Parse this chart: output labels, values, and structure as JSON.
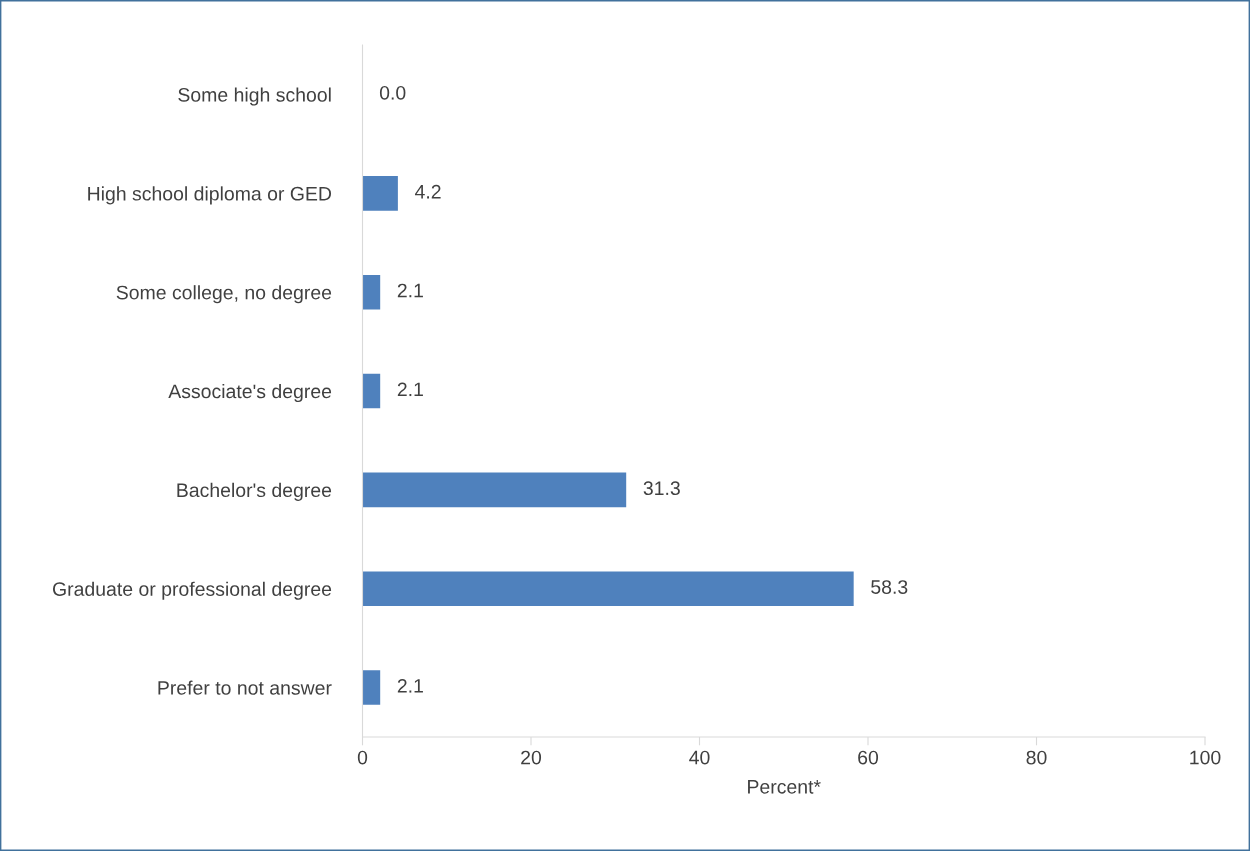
{
  "chart_data": {
    "type": "bar",
    "orientation": "horizontal",
    "xlabel": "Percent*",
    "categories": [
      "Some high school",
      "High school diploma or GED",
      "Some college, no degree",
      "Associate's degree",
      "Bachelor's degree",
      "Graduate or professional degree",
      "Prefer to not answer"
    ],
    "values": [
      0.0,
      4.2,
      2.1,
      2.1,
      31.3,
      58.3,
      2.1
    ],
    "value_labels": [
      "0.0",
      "4.2",
      "2.1",
      "2.1",
      "31.3",
      "58.3",
      "2.1"
    ],
    "color": "#4f81bd",
    "xlim": [
      0,
      100
    ],
    "xticks": [
      0,
      20,
      40,
      60,
      80,
      100
    ],
    "grid": false,
    "legend": false
  }
}
